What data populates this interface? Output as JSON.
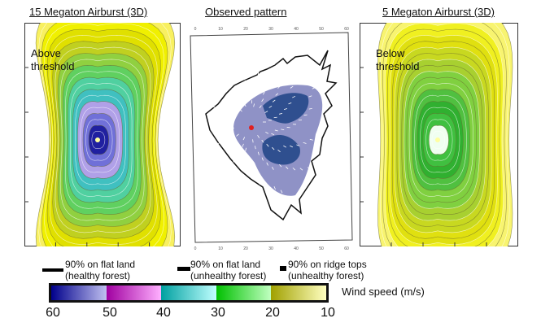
{
  "panels": [
    {
      "title": "15 Megaton Airburst (3D)",
      "annotation_lines": [
        "Above",
        "threshold"
      ]
    },
    {
      "title": "Observed pattern",
      "map_ticks": [
        "0",
        "10",
        "20",
        "30",
        "40",
        "50",
        "60"
      ]
    },
    {
      "title": "5 Megaton Airburst (3D)",
      "annotation_lines": [
        "Below",
        "threshold"
      ]
    }
  ],
  "legend": {
    "items": [
      {
        "lines": [
          "90% on flat land",
          "(healthy forest)"
        ]
      },
      {
        "lines": [
          "90% on flat land",
          "(unhealthy forest)"
        ]
      },
      {
        "lines": [
          "90% on ridge tops",
          "(unhealthy forest)"
        ]
      }
    ],
    "colorbar_label": "Wind speed (m/s)",
    "colorbar_ticks": [
      "60",
      "50",
      "40",
      "30",
      "20",
      "10"
    ],
    "colorbar_colors": [
      "#00008b",
      "#c0c0f0",
      "#a000a0",
      "#ffb0ff",
      "#00a0a0",
      "#c0ffff",
      "#00c000",
      "#c0ffc0",
      "#a0a000",
      "#ffffc0"
    ]
  },
  "colors": {
    "dark_blue": "#2f4f8f",
    "light_blue": "#8f92c6",
    "epicenter": "#e02020"
  }
}
